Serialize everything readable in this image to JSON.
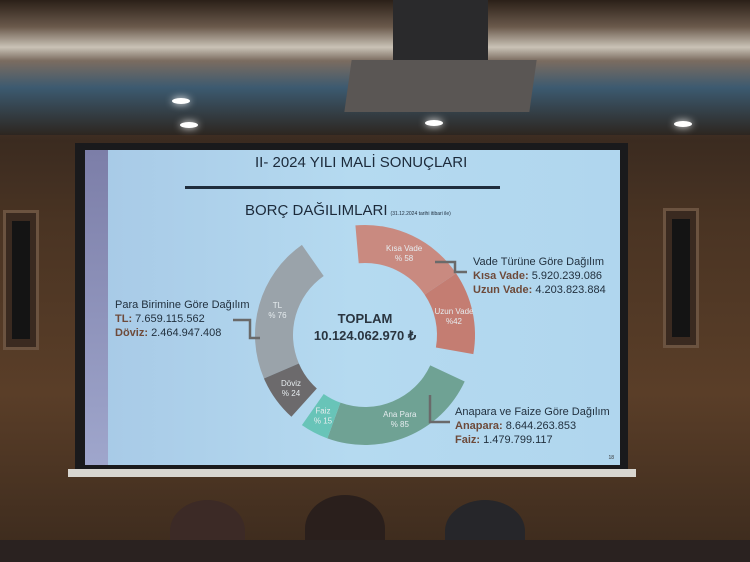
{
  "slide": {
    "title": "II- 2024 YILI MALİ SONUÇLARI",
    "subtitle": "BORÇ DAĞILIMLARI",
    "date_note": "(31.12.2024 tarihi itibari ile)",
    "total_label": "TOPLAM",
    "total_value": "10.124.062.970 ₺",
    "page_number": "18",
    "currency": {
      "heading": "Para Birimine Göre Dağılım",
      "tl_label": "TL:",
      "tl_value": "7.659.115.562",
      "fx_label": "Döviz:",
      "fx_value": "2.464.947.408",
      "segments": [
        {
          "label": "TL",
          "pct": "% 76",
          "color": "#9aa3aa"
        },
        {
          "label": "Döviz",
          "pct": "% 24",
          "color": "#6c6a6c"
        }
      ]
    },
    "term": {
      "heading": "Vade Türüne Göre Dağılım",
      "short_label": "Kısa Vade:",
      "short_value": "5.920.239.086",
      "long_label": "Uzun Vade:",
      "long_value": "4.203.823.884",
      "segments": [
        {
          "label": "Kısa Vade",
          "pct": "% 58",
          "color": "#c98a80"
        },
        {
          "label": "Uzun Vade",
          "pct": "%42",
          "color": "#c47d72"
        }
      ]
    },
    "principal": {
      "heading": "Anapara ve Faize Göre Dağılım",
      "principal_label": "Anapara:",
      "principal_value": "8.644.263.853",
      "interest_label": "Faiz:",
      "interest_value": "1.479.799.117",
      "segments": [
        {
          "label": "Ana Para",
          "pct": "% 85",
          "color": "#6fa294"
        },
        {
          "label": "Faiz",
          "pct": "% 15",
          "color": "#68c4b8"
        }
      ]
    }
  }
}
